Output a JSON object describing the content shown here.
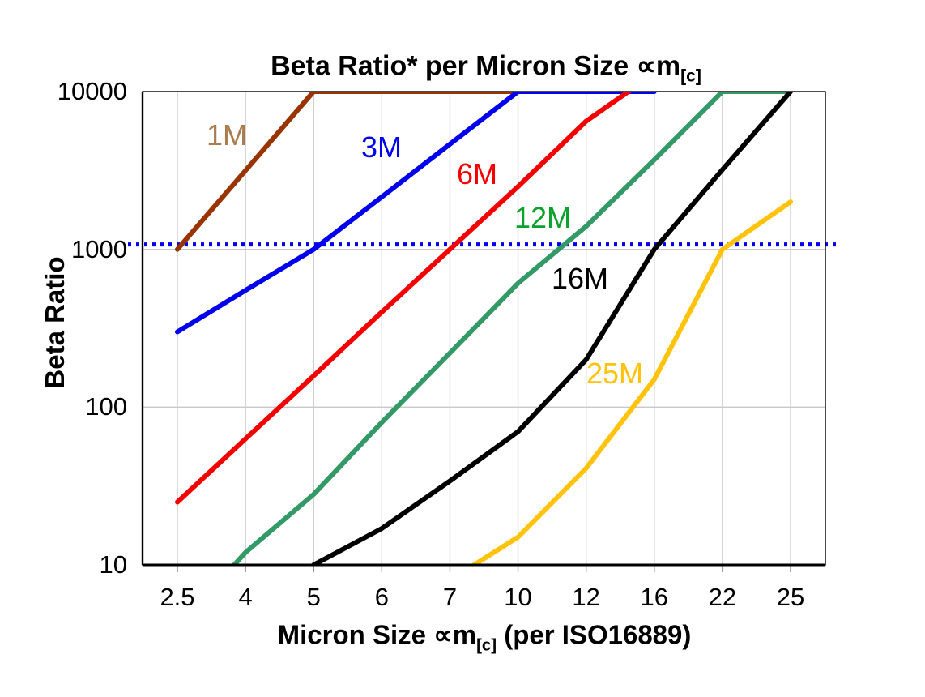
{
  "title": {
    "text": "Beta Ratio* per Micron Size ∝m",
    "subscript": "[c]"
  },
  "y_axis": {
    "label": "Beta Ratio",
    "scale": "log",
    "ticks": [
      {
        "label": "10000",
        "value": 10000
      },
      {
        "label": "1000",
        "value": 1000
      },
      {
        "label": "100",
        "value": 100
      },
      {
        "label": "10",
        "value": 10
      }
    ]
  },
  "x_axis": {
    "label_prefix": "Micron Size ∝m",
    "label_subscript": "[c]",
    "label_suffix": " (per ISO16889)",
    "categories": [
      "2.5",
      "4",
      "5",
      "6",
      "7",
      "10",
      "12",
      "16",
      "22",
      "25"
    ]
  },
  "chart_data": {
    "type": "line",
    "x": [
      2.5,
      4,
      5,
      6,
      7,
      10,
      12,
      16,
      22,
      25
    ],
    "y_scale": "log",
    "ylim": [
      10,
      10000
    ],
    "grid": true,
    "gridline_color": "#C9C9C9",
    "axis_color": "#000000",
    "reference_line": {
      "value": 1000,
      "style": "dotted",
      "color": "#0000EE"
    },
    "series": [
      {
        "name": "1M",
        "color": "#993300",
        "label_color": "#A97C4E",
        "label_pos": [
          280,
          167
        ],
        "values": [
          1000,
          3160,
          10000,
          10000,
          10000,
          10000,
          null,
          null,
          null,
          null
        ]
      },
      {
        "name": "3M",
        "color": "#0000EE",
        "label_color": "#0000EE",
        "label_pos": [
          471,
          182
        ],
        "values": [
          300,
          550,
          1000,
          2150,
          4640,
          10000,
          10000,
          10000,
          null,
          null
        ]
      },
      {
        "name": "6M",
        "color": "#F40000",
        "label_color": "#F40000",
        "label_pos": [
          589,
          215
        ],
        "values": [
          25,
          63,
          158,
          400,
          1000,
          2500,
          6500,
          13000,
          null,
          null
        ]
      },
      {
        "name": "12M",
        "color": "#339966",
        "label_color": "#0AA22C",
        "label_pos": [
          670,
          269
        ],
        "values": [
          4,
          12,
          28,
          80,
          220,
          610,
          1400,
          3700,
          10000,
          10000
        ]
      },
      {
        "name": "16M",
        "color": "#000000",
        "label_color": "#000000",
        "label_pos": [
          716,
          344
        ],
        "values": [
          null,
          null,
          10,
          17,
          34,
          70,
          200,
          1000,
          3200,
          10000
        ]
      },
      {
        "name": "25M",
        "color": "#FFC30B",
        "label_color": "#FFC30B",
        "label_pos": [
          759,
          461
        ],
        "values": [
          null,
          null,
          null,
          null,
          8,
          15,
          41,
          150,
          1000,
          2000
        ]
      }
    ]
  }
}
